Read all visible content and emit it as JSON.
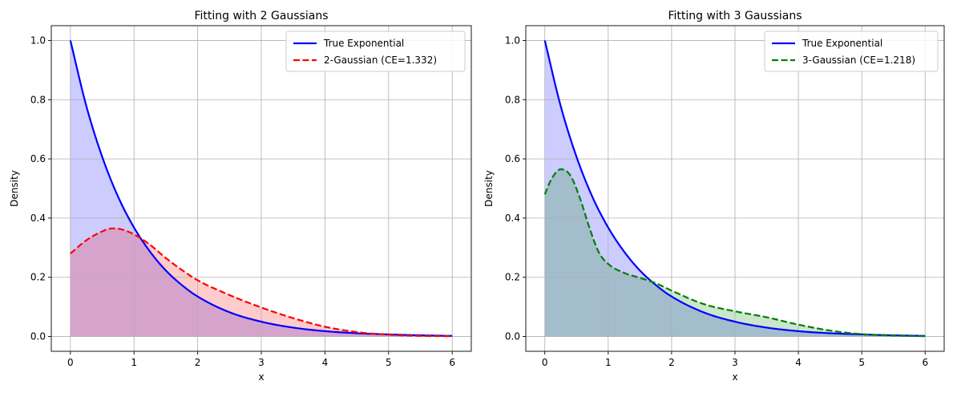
{
  "chart_data": [
    {
      "type": "line",
      "title": "Fitting with 2 Gaussians",
      "xlabel": "x",
      "ylabel": "Density",
      "xlim": [
        -0.3,
        6.3
      ],
      "ylim": [
        -0.05,
        1.05
      ],
      "xticks": [
        0,
        1,
        2,
        3,
        4,
        5,
        6
      ],
      "yticks": [
        0.0,
        0.2,
        0.4,
        0.6,
        0.8,
        1.0
      ],
      "xtick_labels": [
        "0",
        "1",
        "2",
        "3",
        "4",
        "5",
        "6"
      ],
      "ytick_labels": [
        "0.0",
        "0.2",
        "0.4",
        "0.6",
        "0.8",
        "1.0"
      ],
      "grid": true,
      "legend_position": "top-right",
      "series": [
        {
          "name": "True Exponential",
          "color": "#0000ff",
          "style": "solid",
          "fill_alpha": 0.2,
          "x": [
            0,
            0.25,
            0.5,
            0.75,
            1,
            1.25,
            1.5,
            1.75,
            2,
            2.5,
            3,
            3.5,
            4,
            4.5,
            5,
            5.5,
            6
          ],
          "y": [
            1.0,
            0.779,
            0.607,
            0.472,
            0.368,
            0.287,
            0.223,
            0.174,
            0.135,
            0.082,
            0.05,
            0.03,
            0.018,
            0.011,
            0.007,
            0.004,
            0.002
          ]
        },
        {
          "name": "2-Gaussian (CE=1.332)",
          "color": "#ff0000",
          "style": "dashed",
          "fill_alpha": 0.2,
          "x": [
            0,
            0.25,
            0.5,
            0.65,
            0.8,
            1,
            1.25,
            1.5,
            1.75,
            2,
            2.5,
            3,
            3.5,
            4,
            4.5,
            5,
            5.5,
            6
          ],
          "y": [
            0.28,
            0.325,
            0.355,
            0.365,
            0.362,
            0.345,
            0.31,
            0.265,
            0.225,
            0.19,
            0.14,
            0.098,
            0.062,
            0.033,
            0.015,
            0.006,
            0.002,
            0.001
          ]
        }
      ]
    },
    {
      "type": "line",
      "title": "Fitting with 3 Gaussians",
      "xlabel": "x",
      "ylabel": "Density",
      "xlim": [
        -0.3,
        6.3
      ],
      "ylim": [
        -0.05,
        1.05
      ],
      "xticks": [
        0,
        1,
        2,
        3,
        4,
        5,
        6
      ],
      "yticks": [
        0.0,
        0.2,
        0.4,
        0.6,
        0.8,
        1.0
      ],
      "xtick_labels": [
        "0",
        "1",
        "2",
        "3",
        "4",
        "5",
        "6"
      ],
      "ytick_labels": [
        "0.0",
        "0.2",
        "0.4",
        "0.6",
        "0.8",
        "1.0"
      ],
      "grid": true,
      "legend_position": "top-right",
      "series": [
        {
          "name": "True Exponential",
          "color": "#0000ff",
          "style": "solid",
          "fill_alpha": 0.2,
          "x": [
            0,
            0.25,
            0.5,
            0.75,
            1,
            1.25,
            1.5,
            1.75,
            2,
            2.5,
            3,
            3.5,
            4,
            4.5,
            5,
            5.5,
            6
          ],
          "y": [
            1.0,
            0.779,
            0.607,
            0.472,
            0.368,
            0.287,
            0.223,
            0.174,
            0.135,
            0.082,
            0.05,
            0.03,
            0.018,
            0.011,
            0.007,
            0.004,
            0.002
          ]
        },
        {
          "name": "3-Gaussian (CE=1.218)",
          "color": "#008000",
          "style": "dashed",
          "fill_alpha": 0.2,
          "x": [
            0,
            0.1,
            0.25,
            0.4,
            0.55,
            0.7,
            0.85,
            1,
            1.25,
            1.5,
            1.75,
            2,
            2.5,
            3,
            3.5,
            4,
            4.5,
            5,
            5.5,
            6
          ],
          "y": [
            0.48,
            0.53,
            0.565,
            0.545,
            0.47,
            0.37,
            0.285,
            0.245,
            0.215,
            0.198,
            0.18,
            0.155,
            0.11,
            0.085,
            0.065,
            0.04,
            0.02,
            0.008,
            0.003,
            0.001
          ]
        }
      ]
    }
  ]
}
